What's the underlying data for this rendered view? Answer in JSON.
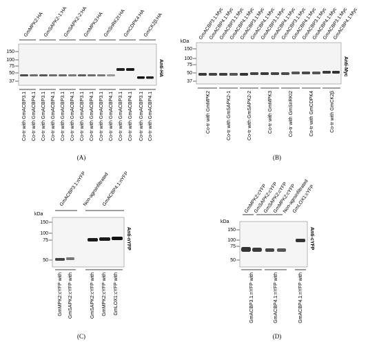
{
  "panels": [
    {
      "id": "A",
      "label": "(A)",
      "antibody": "Anti-HA",
      "kda": "",
      "mw_markers": [
        "150",
        "100",
        "75",
        "50",
        "37"
      ],
      "top_groups": [
        "GmMPK2:HA",
        "GmSAPK2-1:HA",
        "GmSAPK2-2:HA",
        "GmMPK3:HA",
        "GmSnRK2I:HA",
        "GmCDPK4:HA",
        "GmCK2β:HA"
      ],
      "bottom_lanes": [
        "Co-tr with GmACBP3.1",
        "Co-tr with GmACBP4.1",
        "Co-tr with GmACBP3.1",
        "Co-tr with GmACBP4.1",
        "Co-tr with GmACBP3.1",
        "Co-tr with GmACBP4.1",
        "Co-tr with GmACBP3.1",
        "Co-tr with GmACBP4.1",
        "Co-tr with GmACBP3.1",
        "Co-tr with GmACBP4.1",
        "Co-tr with GmACBP3.1",
        "Co-tr with GmACBP4.1",
        "Co-tr with GmACBP3.1",
        "Co-tr with GmACBP4.1"
      ]
    },
    {
      "id": "B",
      "label": "(B)",
      "antibody": "Anti-Myc",
      "kda": "kDa",
      "mw_markers": [
        "150",
        "100",
        "75",
        "50",
        "37"
      ],
      "top_lanes": [
        "GmACBP3.1:Myc",
        "GmACBP4.1:Myc",
        "GmACBP3.1:Myc",
        "GmACBP4.1:Myc",
        "GmACBP3.1:Myc",
        "GmACBP4.1:Myc",
        "GmACBP3.1:Myc",
        "GmACBP4.1:Myc",
        "GmACBP3.1:Myc",
        "GmACBP4.1:Myc",
        "GmACBP3.1:Myc",
        "GmACBP4.1:Myc",
        "GmACBP3.1:Myc",
        "GmACBP4.1:Myc"
      ],
      "bottom_groups": [
        "Co-tr with GmMPK2",
        "Co-tr with GmSAPK2-1",
        "Co-tr with GmSAPK2-2",
        "Co-tr with GmMPK3",
        "Co-tr with GmSnRKI2",
        "Co-tr with GmCDPK4",
        "Co-tr with GmCK2β"
      ]
    },
    {
      "id": "C",
      "label": "(C)",
      "antibody": "Anti-nYFP",
      "kda": "kDa",
      "mw_markers": [
        "150",
        "100",
        "75",
        "50"
      ],
      "top_groups": [
        "GmACBP3.1:nYFP",
        "Non-agroinfiltrated",
        "GmACBP4.1:nYFP"
      ],
      "bottom_lanes": [
        "GmMPK2:cYFP with",
        "GmSAPK2:cYFP with",
        "",
        "GmSAPK2:cYFP with",
        "GmMPK2:cYFP with",
        "GmLOX1:cYFP with"
      ]
    },
    {
      "id": "D",
      "label": "(D)",
      "antibody": "Anti-cYFP",
      "kda": "kDa",
      "mw_markers": [
        "150",
        "100",
        "75",
        "50"
      ],
      "top_lanes": [
        "GmMPK2:cYFP",
        "GmSAPK2:cYFP",
        "GmSAPK2:cYFP",
        "GmMPK2:cYFP",
        "Non-agroinfiltrated",
        "GmLOX1:cYFP"
      ],
      "bottom_groups": [
        "GmACBP3.1:nYFP with",
        "GmACBP4.1:nYFP with",
        "GmACBP4.1:nYFP with"
      ]
    }
  ]
}
